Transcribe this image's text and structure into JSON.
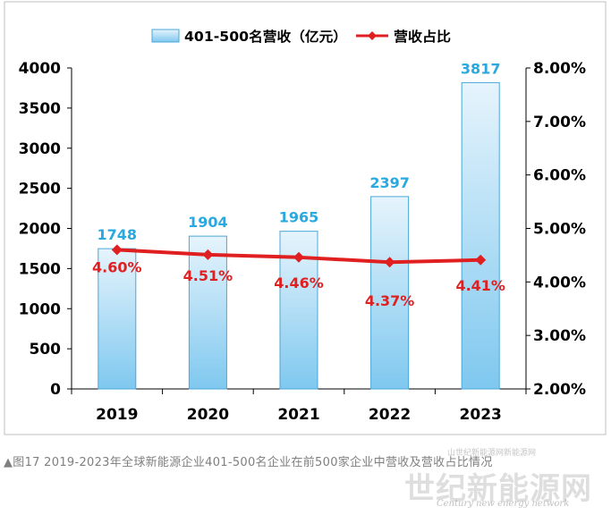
{
  "chart_data": {
    "type": "bar",
    "categories": [
      "2019",
      "2020",
      "2021",
      "2022",
      "2023"
    ],
    "series": [
      {
        "name": "401-500名营收（亿元）",
        "type": "bar",
        "axis": "left",
        "values": [
          1748,
          1904,
          1965,
          2397,
          3817
        ],
        "labels": [
          "1748",
          "1904",
          "1965",
          "2397",
          "3817"
        ]
      },
      {
        "name": "营收占比",
        "type": "line",
        "axis": "right",
        "values": [
          4.6,
          4.51,
          4.46,
          4.37,
          4.41
        ],
        "labels": [
          "4.60%",
          "4.51%",
          "4.46%",
          "4.37%",
          "4.41%"
        ]
      }
    ],
    "ylim": [
      0,
      4000
    ],
    "y_ticks": [
      "0",
      "500",
      "1000",
      "1500",
      "2000",
      "2500",
      "3000",
      "3500",
      "4000"
    ],
    "y2lim": [
      2.0,
      8.0
    ],
    "y2_ticks": [
      "2.00%",
      "3.00%",
      "4.00%",
      "5.00%",
      "6.00%",
      "7.00%",
      "8.00%"
    ],
    "grid": false,
    "legend_position": "top-center",
    "colors": {
      "bar_top": "#e6f4fc",
      "bar_bottom": "#7fc8ef",
      "bar_border": "#4aa8d8",
      "bar_label": "#29a9df",
      "line": "#e02020",
      "line_label": "#e02020",
      "axis_text": "#000000"
    }
  },
  "caption": "▲图17 2019-2023年全球新能源企业401-500名企业在前500家企业中营收及营收占比情况",
  "watermark": {
    "main": "世纪新能源网",
    "sub": "Century new energy network",
    "top": "山世纪新能源网新能源网"
  }
}
